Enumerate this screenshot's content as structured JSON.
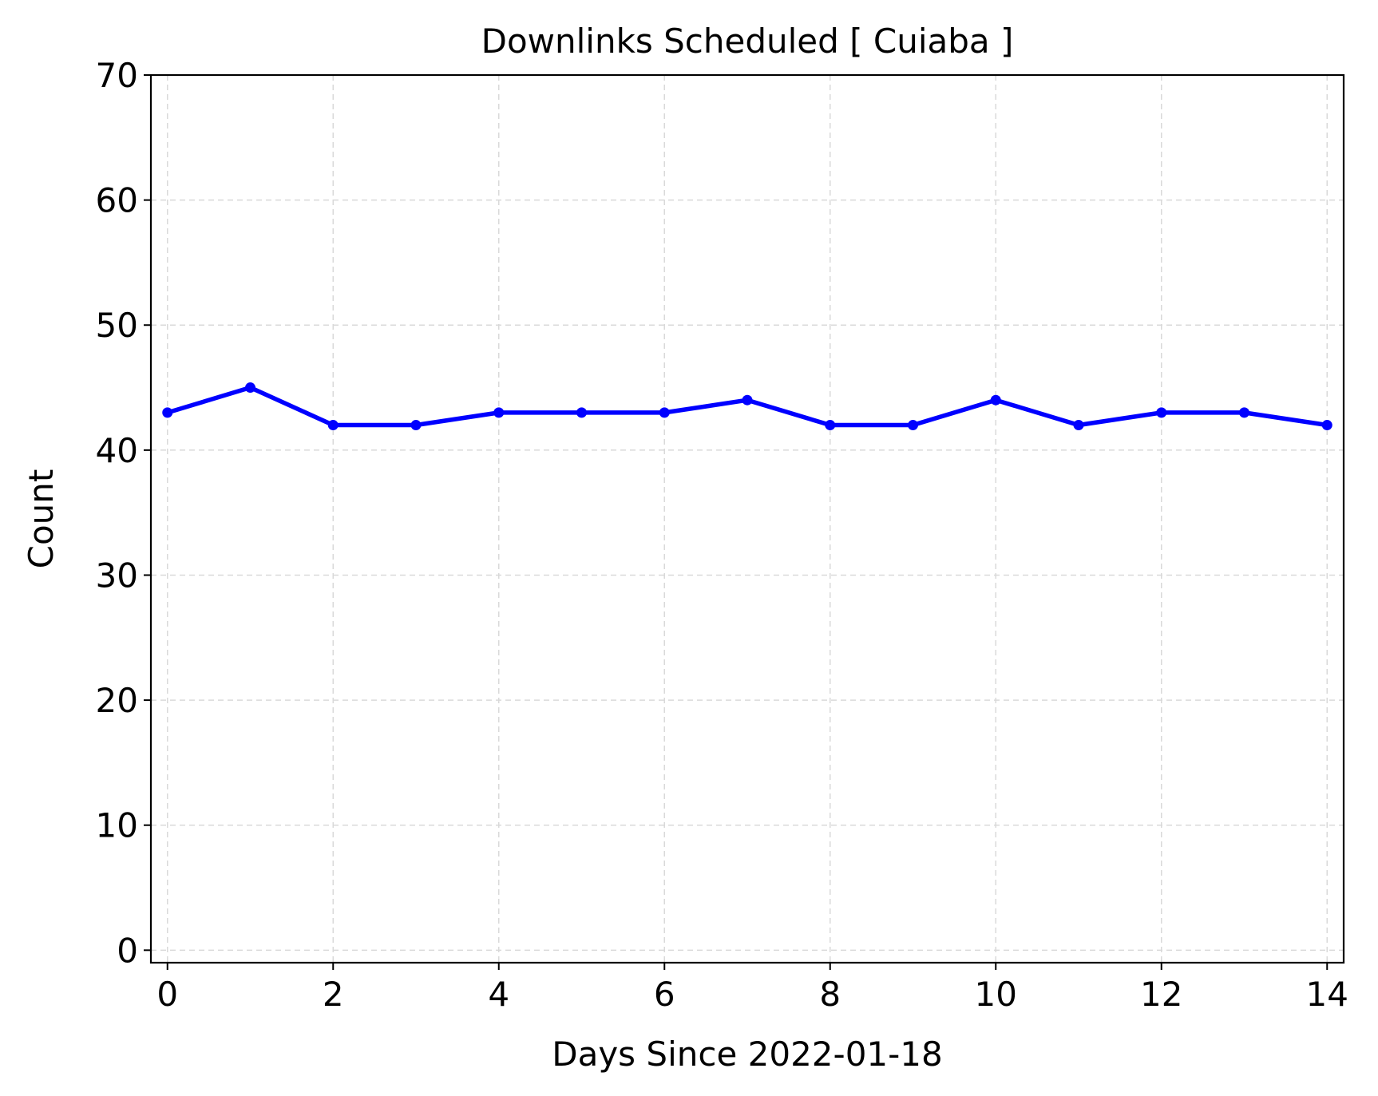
{
  "chart_data": {
    "type": "line",
    "title": "Downlinks Scheduled [ Cuiaba ]",
    "xlabel": "Days Since 2022-01-18",
    "ylabel": "Count",
    "xlim": [
      -0.2,
      14.2
    ],
    "ylim": [
      -1,
      70
    ],
    "xticks": [
      0,
      2,
      4,
      6,
      8,
      10,
      12,
      14
    ],
    "xtick_labels": [
      "0",
      "2",
      "4",
      "6",
      "8",
      "10",
      "12",
      "14"
    ],
    "yticks": [
      0,
      10,
      20,
      30,
      40,
      50,
      60,
      70
    ],
    "ytick_labels": [
      "0",
      "10",
      "20",
      "30",
      "40",
      "50",
      "60",
      "70"
    ],
    "grid": true,
    "legend": "none",
    "series": [
      {
        "color": "#0000ff",
        "marker": "circle",
        "x": [
          0,
          1,
          2,
          3,
          4,
          5,
          6,
          7,
          8,
          9,
          10,
          11,
          12,
          13,
          14
        ],
        "y": [
          43,
          45,
          42,
          42,
          43,
          43,
          43,
          44,
          42,
          42,
          44,
          42,
          43,
          43,
          42
        ]
      }
    ]
  }
}
